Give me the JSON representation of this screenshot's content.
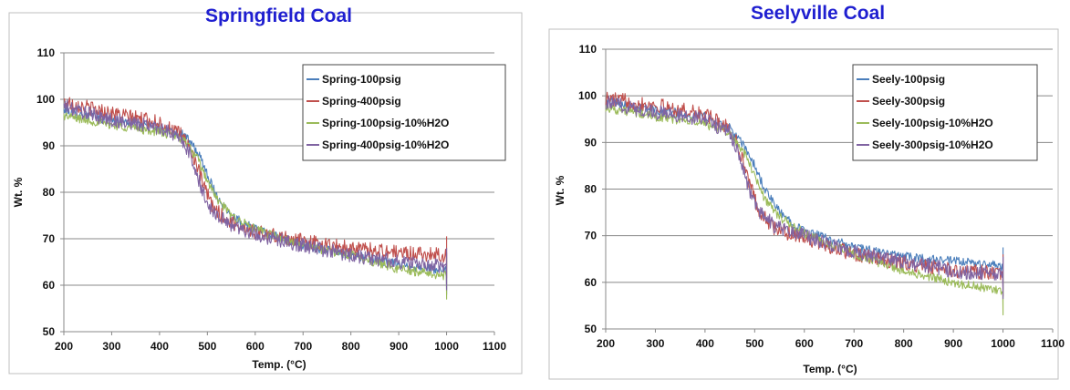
{
  "chart_data": [
    {
      "type": "line",
      "title": "Springfield Coal",
      "xlabel": "Temp. (°C)",
      "ylabel": "Wt. %",
      "xlim": [
        200,
        1100
      ],
      "ylim": [
        50,
        110
      ],
      "xticks": [
        200,
        300,
        400,
        500,
        600,
        700,
        800,
        900,
        1000,
        1100
      ],
      "yticks": [
        50,
        60,
        70,
        80,
        90,
        100,
        110
      ],
      "grid": "horizontal",
      "legend": "top-right",
      "series": [
        {
          "name": "Spring-100psig",
          "color": "#4a7ebb",
          "x": [
            200,
            300,
            400,
            450,
            480,
            500,
            520,
            550,
            600,
            700,
            800,
            900,
            1000
          ],
          "y": [
            97.5,
            95.5,
            94,
            92.5,
            88.5,
            84,
            79,
            75,
            72,
            68.5,
            66.5,
            64.5,
            63
          ]
        },
        {
          "name": "Spring-400psig",
          "color": "#c0504d",
          "x": [
            200,
            300,
            400,
            450,
            470,
            490,
            510,
            540,
            600,
            700,
            800,
            900,
            1000
          ],
          "y": [
            99.5,
            97,
            95,
            92,
            88,
            82,
            77,
            74,
            71.5,
            69.5,
            68,
            67,
            66.5
          ]
        },
        {
          "name": "Spring-100psig-10%H2O",
          "color": "#9bbb59",
          "x": [
            200,
            300,
            400,
            450,
            480,
            500,
            520,
            550,
            600,
            700,
            800,
            900,
            1000
          ],
          "y": [
            96.5,
            94.5,
            93,
            91.5,
            87,
            82.5,
            78.5,
            75,
            72,
            68.5,
            66.5,
            63.5,
            62
          ]
        },
        {
          "name": "Spring-400psig-10%H2O",
          "color": "#8064a2",
          "x": [
            200,
            300,
            400,
            450,
            470,
            490,
            510,
            540,
            600,
            700,
            800,
            900,
            1000
          ],
          "y": [
            98.5,
            95.5,
            94,
            91,
            86.5,
            80,
            76,
            73.5,
            71,
            68.5,
            66.5,
            65,
            64
          ]
        }
      ]
    },
    {
      "type": "line",
      "title": "Seelyville Coal",
      "xlabel": "Temp. (°C)",
      "ylabel": "Wt. %",
      "xlim": [
        200,
        1100
      ],
      "ylim": [
        50,
        110
      ],
      "xticks": [
        200,
        300,
        400,
        500,
        600,
        700,
        800,
        900,
        1000,
        1100
      ],
      "yticks": [
        50,
        60,
        70,
        80,
        90,
        100,
        110
      ],
      "grid": "horizontal",
      "legend": "top-right",
      "series": [
        {
          "name": "Seely-100psig",
          "color": "#4a7ebb",
          "x": [
            200,
            300,
            400,
            450,
            480,
            500,
            520,
            550,
            600,
            700,
            800,
            900,
            1000
          ],
          "y": [
            99,
            97,
            95.5,
            93,
            89,
            85,
            80,
            75,
            71,
            67.5,
            65.5,
            64.5,
            63.5
          ]
        },
        {
          "name": "Seely-300psig",
          "color": "#c0504d",
          "x": [
            200,
            300,
            400,
            450,
            470,
            490,
            510,
            540,
            600,
            700,
            800,
            900,
            1000
          ],
          "y": [
            99.5,
            98,
            96,
            93,
            88.5,
            81,
            75,
            71.5,
            69.5,
            66,
            64,
            62.5,
            62
          ]
        },
        {
          "name": "Seely-100psig-10%H2O",
          "color": "#9bbb59",
          "x": [
            200,
            300,
            400,
            450,
            480,
            500,
            520,
            550,
            600,
            700,
            800,
            900,
            1000
          ],
          "y": [
            97.5,
            95.5,
            94,
            92,
            87.5,
            83,
            78,
            74,
            70.5,
            66,
            62.5,
            60,
            58
          ]
        },
        {
          "name": "Seely-300psig-10%H2O",
          "color": "#8064a2",
          "x": [
            200,
            300,
            400,
            450,
            470,
            490,
            510,
            540,
            600,
            700,
            800,
            900,
            1000
          ],
          "y": [
            98.5,
            96.5,
            95,
            92,
            87,
            79.5,
            75,
            72,
            70,
            66.5,
            64.5,
            62.5,
            61.5
          ]
        }
      ]
    }
  ]
}
